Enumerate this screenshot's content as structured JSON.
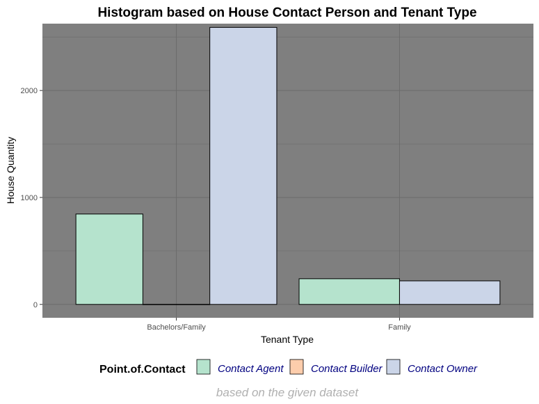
{
  "chart_data": {
    "type": "bar",
    "title": "Histogram based on House Contact Person and Tenant Type",
    "xlabel": "Tenant Type",
    "ylabel": "House Quantity",
    "caption": "based on the given dataset",
    "categories": [
      "Bachelors/Family",
      "Family"
    ],
    "ylim": [
      -125,
      2625
    ],
    "y_ticks": [
      0,
      1000,
      2000
    ],
    "y_tick_labels": [
      "0",
      "1000",
      "2000"
    ],
    "grid": true,
    "legend_title": "Point.of.Contact",
    "legend_position": "bottom",
    "series": [
      {
        "name": "Contact Agent",
        "color": "#b5e3cd",
        "values": [
          845,
          240
        ]
      },
      {
        "name": "Contact Builder",
        "color": "#fdcdac",
        "values": [
          1,
          null
        ]
      },
      {
        "name": "Contact Owner",
        "color": "#cbd5e8",
        "values": [
          2590,
          220
        ]
      }
    ],
    "panel_background": "#7f7f7f",
    "grid_color": "#6b6b6b"
  }
}
